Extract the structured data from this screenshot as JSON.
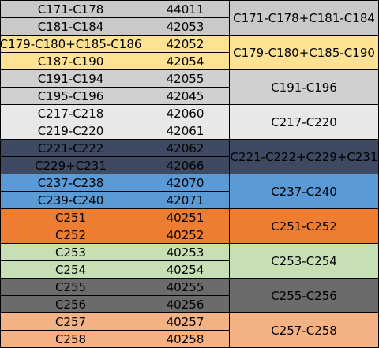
{
  "groups": [
    {
      "color": "#c9c9c9",
      "text_color": "#000000",
      "merged": "C171-C178+C181-C184",
      "rows": [
        {
          "part": "C171-C178",
          "code": "44011"
        },
        {
          "part": "C181-C184",
          "code": "42053"
        }
      ]
    },
    {
      "color": "#fde294",
      "text_color": "#000000",
      "merged": "C179-C180+C185-C190",
      "rows": [
        {
          "part": "C179-C180+C185-C186",
          "code": "42052"
        },
        {
          "part": "C187-C190",
          "code": "42054"
        }
      ]
    },
    {
      "color": "#d0d0d0",
      "text_color": "#000000",
      "merged": "C191-C196",
      "rows": [
        {
          "part": "C191-C194",
          "code": "42055"
        },
        {
          "part": "C195-C196",
          "code": "42045"
        }
      ]
    },
    {
      "color": "#e8e8e8",
      "text_color": "#000000",
      "merged": "C217-C220",
      "rows": [
        {
          "part": "C217-C218",
          "code": "42060"
        },
        {
          "part": "C219-C220",
          "code": "42061"
        }
      ]
    },
    {
      "color": "#3d4a61",
      "text_color": "#000000",
      "merged": "C221-C222+C229+C231",
      "rows": [
        {
          "part": "C221-C222",
          "code": "42062"
        },
        {
          "part": "C229+C231",
          "code": "42066"
        }
      ]
    },
    {
      "color": "#5a9ad6",
      "text_color": "#000000",
      "merged": "C237-C240",
      "rows": [
        {
          "part": "C237-C238",
          "code": "42070"
        },
        {
          "part": "C239-C240",
          "code": "42071"
        }
      ]
    },
    {
      "color": "#ed7d31",
      "text_color": "#000000",
      "merged": "C251-C252",
      "rows": [
        {
          "part": "C251",
          "code": "40251"
        },
        {
          "part": "C252",
          "code": "40252"
        }
      ]
    },
    {
      "color": "#c6e0b4",
      "text_color": "#000000",
      "merged": "C253-C254",
      "rows": [
        {
          "part": "C253",
          "code": "40253"
        },
        {
          "part": "C254",
          "code": "40254"
        }
      ]
    },
    {
      "color": "#6d6b69",
      "text_color": "#000000",
      "merged": "C255-C256",
      "rows": [
        {
          "part": "C255",
          "code": "40255"
        },
        {
          "part": "C256",
          "code": "40256"
        }
      ]
    },
    {
      "color": "#f4b183",
      "text_color": "#000000",
      "merged": "C257-C258",
      "rows": [
        {
          "part": "C257",
          "code": "40257"
        },
        {
          "part": "C258",
          "code": "40258"
        }
      ]
    }
  ]
}
